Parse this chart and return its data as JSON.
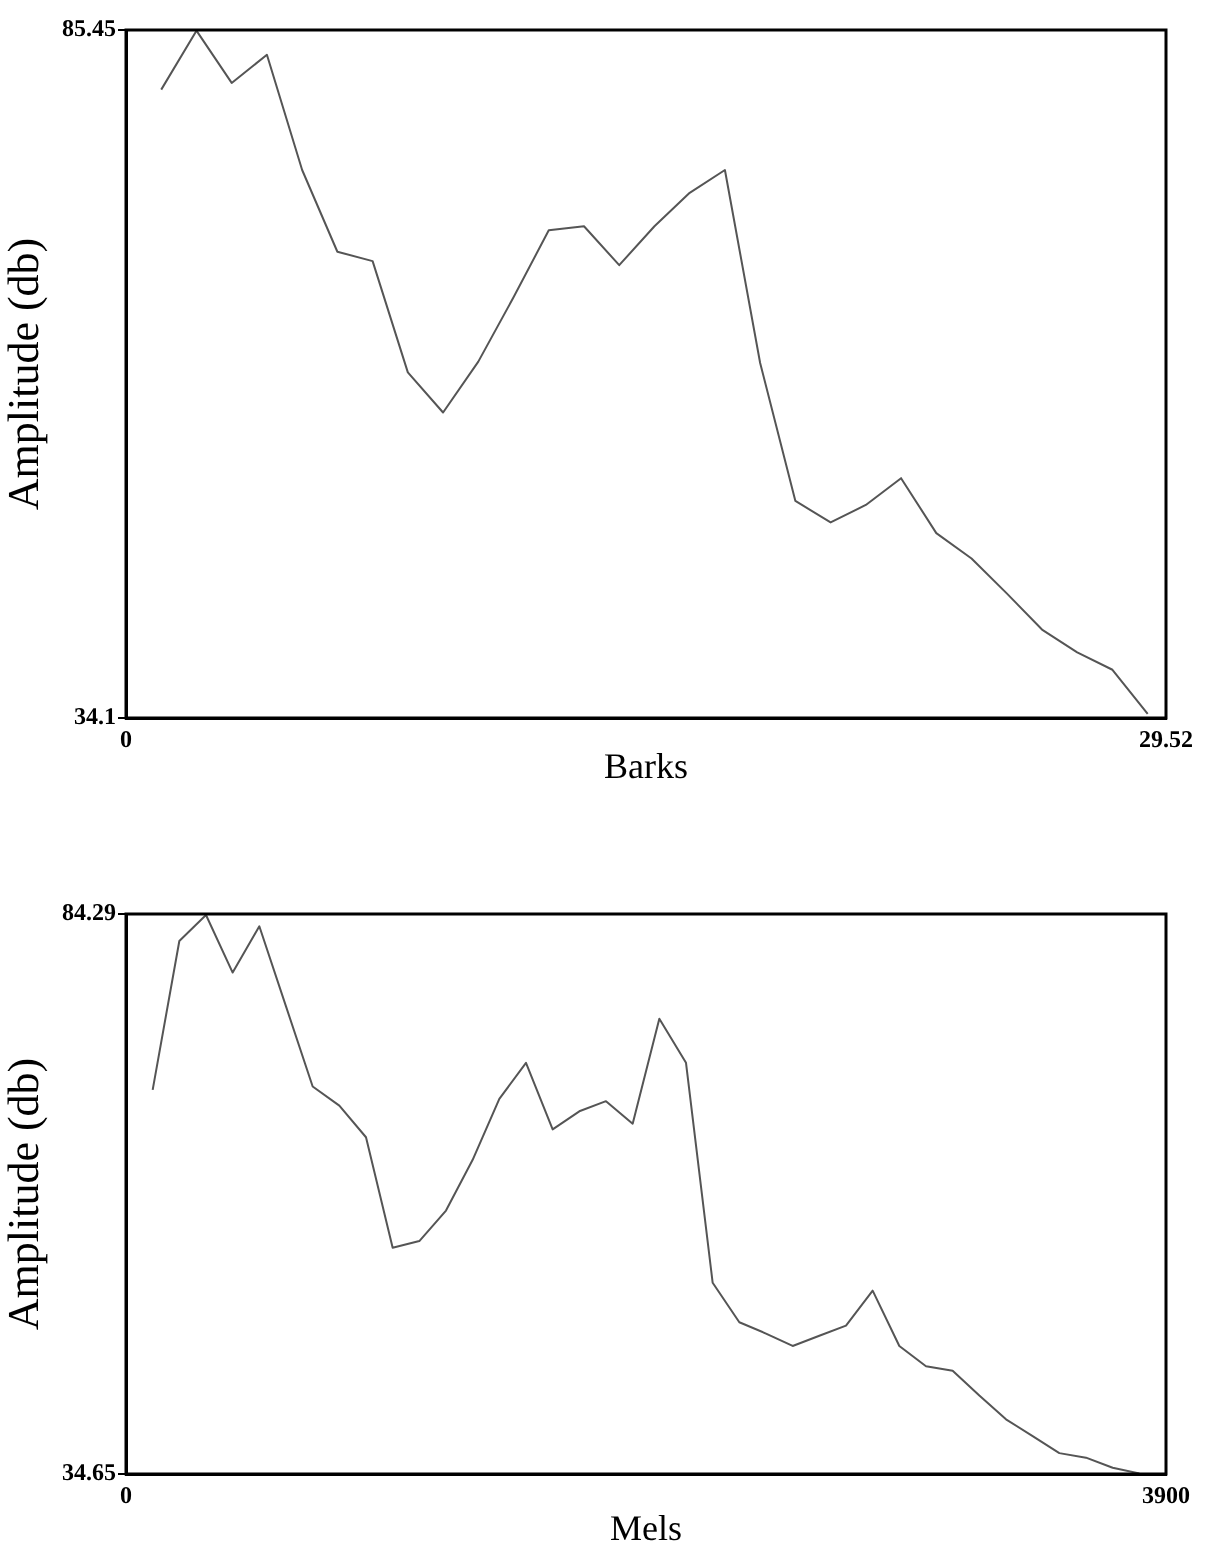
{
  "chart_data": [
    {
      "type": "line",
      "xlabel": "Barks",
      "ylabel": "Amplitude (db)",
      "xlim": [
        0,
        29.52
      ],
      "xticks": [
        0,
        29.52
      ],
      "ylim": [
        34.1,
        85.45
      ],
      "yticks": [
        34.1,
        85.45
      ],
      "marker": "none",
      "line_style": "solid",
      "x": [
        1,
        2,
        3,
        4,
        5,
        6,
        7,
        8,
        9,
        10,
        11,
        12,
        13,
        14,
        15,
        16,
        17,
        18,
        19,
        20,
        21,
        22,
        23,
        24,
        25,
        26,
        27,
        28,
        29
      ],
      "series": [
        {
          "color": "#555555",
          "values": [
            81.0,
            85.4,
            81.5,
            83.6,
            75.0,
            68.9,
            68.2,
            59.9,
            56.9,
            60.7,
            65.5,
            70.5,
            70.8,
            67.9,
            70.8,
            73.3,
            75.0,
            60.6,
            50.3,
            48.7,
            50.0,
            52.0,
            47.9,
            46.0,
            43.4,
            40.7,
            39.0,
            37.7,
            34.4
          ]
        }
      ]
    },
    {
      "type": "line",
      "xlabel": "Mels",
      "ylabel": "Amplitude (db)",
      "xlim": [
        0,
        3900
      ],
      "xticks": [
        0,
        3900
      ],
      "ylim": [
        34.65,
        84.29
      ],
      "yticks": [
        34.65,
        84.29
      ],
      "marker": "none",
      "line_style": "solid",
      "x": [
        100,
        200,
        300,
        400,
        500,
        600,
        700,
        800,
        900,
        1000,
        1100,
        1200,
        1300,
        1400,
        1500,
        1600,
        1700,
        1800,
        1900,
        2000,
        2100,
        2200,
        2300,
        2400,
        2500,
        2600,
        2700,
        2800,
        2900,
        3000,
        3100,
        3200,
        3300,
        3400,
        3500,
        3600,
        3700,
        3800
      ],
      "series": [
        {
          "color": "#555555",
          "values": [
            68.7,
            81.9,
            84.2,
            79.1,
            83.2,
            76.1,
            69.0,
            67.3,
            64.5,
            54.7,
            55.3,
            58.0,
            62.5,
            67.9,
            71.1,
            65.2,
            66.8,
            67.7,
            65.7,
            75.0,
            71.1,
            51.6,
            48.1,
            47.1,
            46.0,
            46.9,
            47.8,
            50.9,
            46.0,
            44.2,
            43.8,
            41.6,
            39.5,
            38.0,
            36.5,
            36.1,
            35.2,
            34.7
          ]
        }
      ]
    }
  ]
}
